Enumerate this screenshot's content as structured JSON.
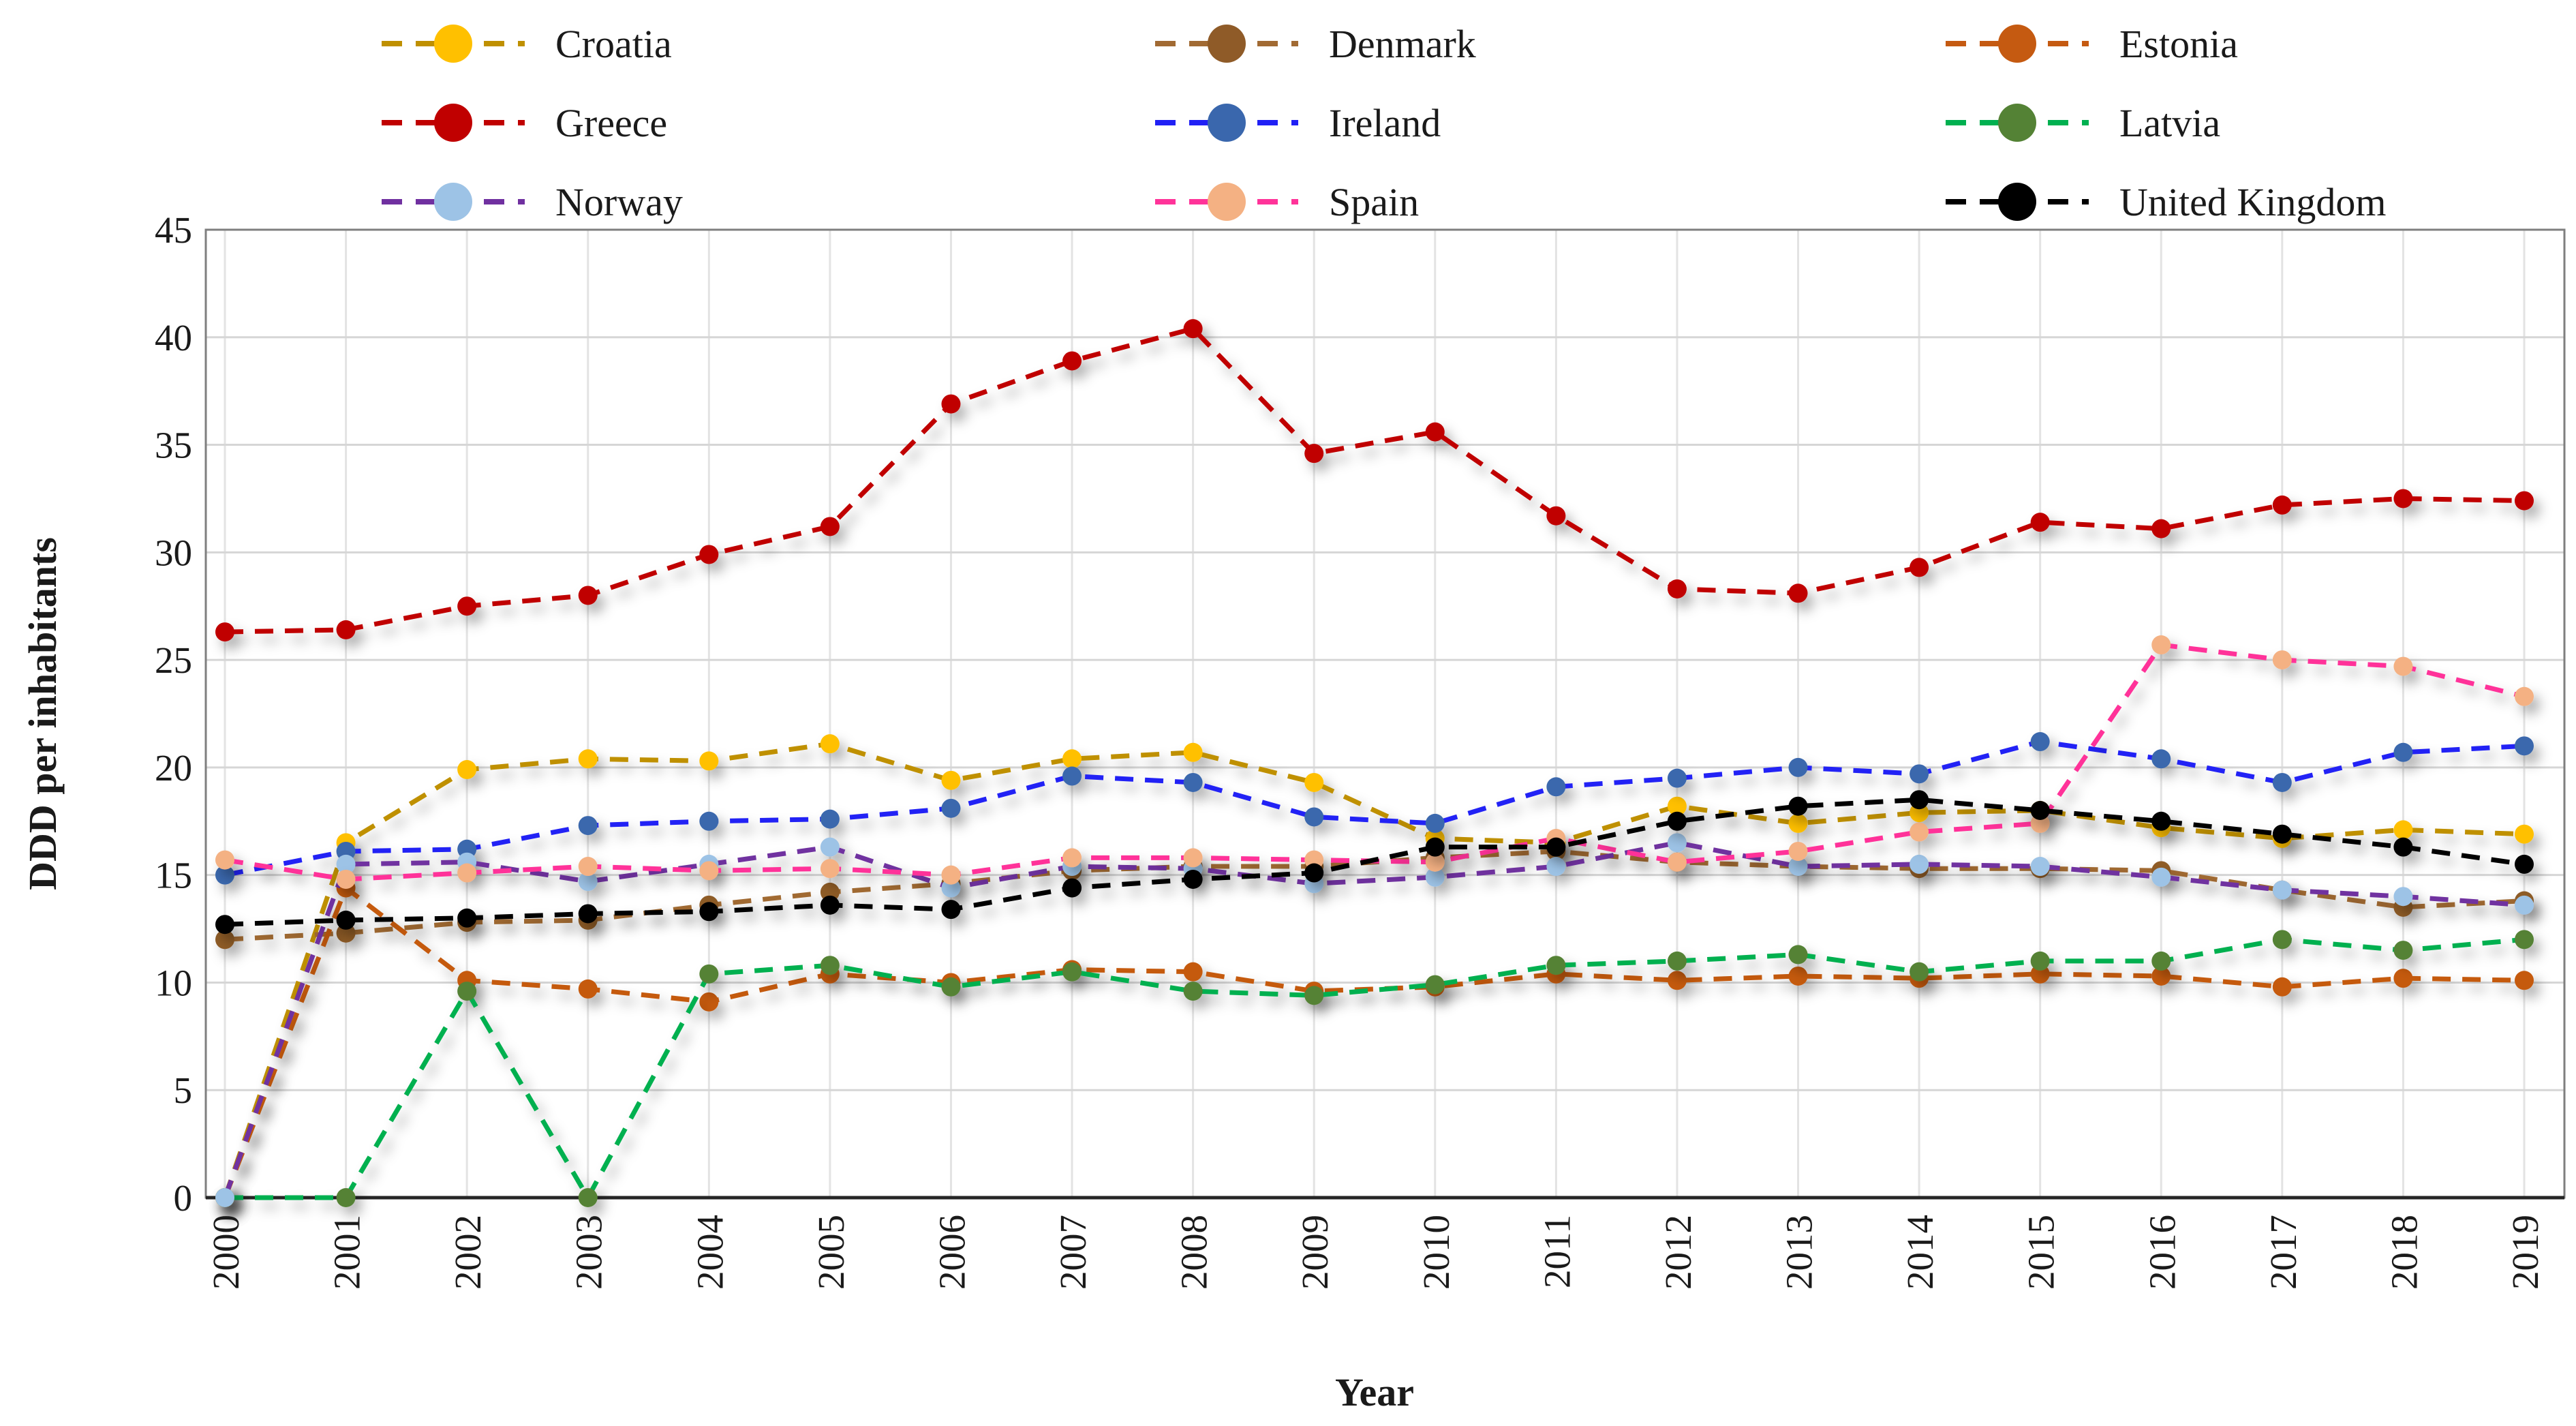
{
  "chart_data": {
    "type": "line",
    "title": "",
    "xlabel": "Year",
    "ylabel": "DDD per inhabitants",
    "ylim": [
      0,
      45
    ],
    "y_tick_step": 5,
    "y_ticks": [
      0,
      5,
      10,
      15,
      20,
      25,
      30,
      35,
      40,
      45
    ],
    "grid": true,
    "legend_position": "top",
    "legend_columns": 3,
    "line_style": "dashed",
    "marker": "circle",
    "x": [
      2000,
      2001,
      2002,
      2003,
      2004,
      2005,
      2006,
      2007,
      2008,
      2009,
      2010,
      2011,
      2012,
      2013,
      2014,
      2015,
      2016,
      2017,
      2018,
      2019
    ],
    "series": [
      {
        "name": "Croatia",
        "marker_color": "#FFC000",
        "line_color": "#BF9000",
        "values": [
          0,
          16.5,
          19.9,
          20.4,
          20.3,
          21.1,
          19.4,
          20.4,
          20.7,
          19.3,
          16.7,
          16.5,
          18.2,
          17.4,
          17.9,
          18.0,
          17.2,
          16.7,
          17.1,
          16.9
        ]
      },
      {
        "name": "Denmark",
        "marker_color": "#8F5B28",
        "line_color": "#A16A33",
        "values": [
          12.0,
          12.3,
          12.8,
          12.9,
          13.6,
          14.2,
          14.6,
          15.2,
          15.4,
          15.4,
          15.8,
          16.1,
          15.6,
          15.4,
          15.3,
          15.3,
          15.2,
          14.3,
          13.5,
          13.8
        ]
      },
      {
        "name": "Estonia",
        "marker_color": "#C55A11",
        "line_color": "#C55A11",
        "values": [
          0,
          14.4,
          10.1,
          9.7,
          9.1,
          10.4,
          10.0,
          10.6,
          10.5,
          9.6,
          9.8,
          10.4,
          10.1,
          10.3,
          10.2,
          10.4,
          10.3,
          9.8,
          10.2,
          10.1
        ]
      },
      {
        "name": "Greece",
        "marker_color": "#C00000",
        "line_color": "#C00000",
        "values": [
          26.3,
          26.4,
          27.5,
          28.0,
          29.9,
          31.2,
          36.9,
          38.9,
          40.4,
          34.6,
          35.6,
          31.7,
          28.3,
          28.1,
          29.3,
          31.4,
          31.1,
          32.2,
          32.5,
          32.4
        ]
      },
      {
        "name": "Ireland",
        "marker_color": "#3A67AD",
        "line_color": "#2020F5",
        "values": [
          15.0,
          16.1,
          16.2,
          17.3,
          17.5,
          17.6,
          18.1,
          19.6,
          19.3,
          17.7,
          17.4,
          19.1,
          19.5,
          20.0,
          19.7,
          21.2,
          20.4,
          19.3,
          20.7,
          21.0
        ]
      },
      {
        "name": "Latvia",
        "marker_color": "#548235",
        "line_color": "#00B050",
        "values": [
          0,
          0,
          9.6,
          0,
          10.4,
          10.8,
          9.8,
          10.5,
          9.6,
          9.4,
          9.9,
          10.8,
          11.0,
          11.3,
          10.5,
          11.0,
          11.0,
          12.0,
          11.5,
          12.0
        ]
      },
      {
        "name": "Norway",
        "marker_color": "#9DC3E6",
        "line_color": "#7030A0",
        "values": [
          0,
          15.5,
          15.6,
          14.7,
          15.5,
          16.3,
          14.4,
          15.4,
          15.3,
          14.6,
          14.9,
          15.4,
          16.5,
          15.4,
          15.5,
          15.4,
          14.9,
          14.3,
          14.0,
          13.6
        ]
      },
      {
        "name": "Spain",
        "marker_color": "#F4B183",
        "line_color": "#FF3399",
        "values": [
          15.7,
          14.8,
          15.1,
          15.4,
          15.2,
          15.3,
          15.0,
          15.8,
          15.8,
          15.7,
          15.6,
          16.7,
          15.6,
          16.1,
          17.0,
          17.4,
          25.7,
          25.0,
          24.7,
          23.3
        ]
      },
      {
        "name": "United Kingdom",
        "marker_color": "#000000",
        "line_color": "#000000",
        "values": [
          12.7,
          12.9,
          13.0,
          13.2,
          13.3,
          13.6,
          13.4,
          14.4,
          14.8,
          15.1,
          16.3,
          16.3,
          17.5,
          18.2,
          18.5,
          18.0,
          17.5,
          16.9,
          16.3,
          15.5
        ]
      }
    ],
    "colors": {
      "grid": "#D6D6D6",
      "grid_vertical": "#E3E3E3",
      "plot_border": "#7F7F7F",
      "axis": "#262626",
      "background": "#FFFFFF"
    }
  }
}
